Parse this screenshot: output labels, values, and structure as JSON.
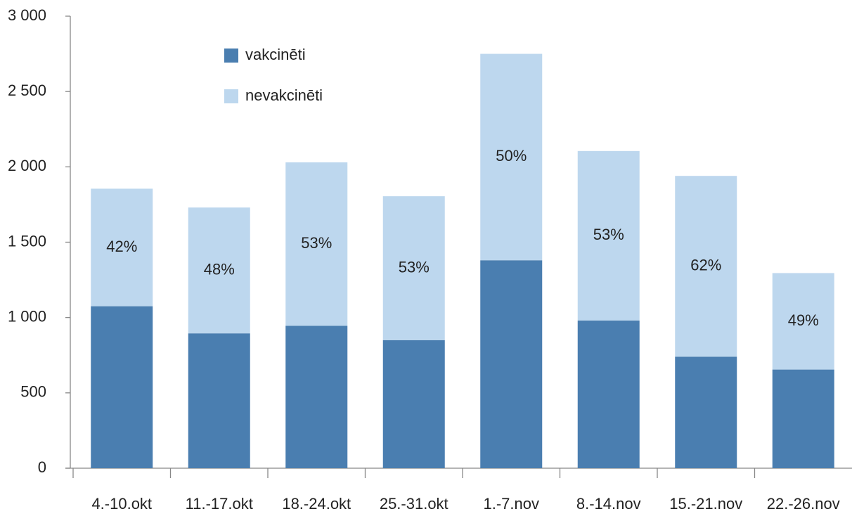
{
  "chart_data": {
    "type": "stacked_bar",
    "categories": [
      "4.-10.okt",
      "11.-17.okt",
      "18.-24.okt",
      "25.-31.okt",
      "1.-7.nov",
      "8.-14.nov",
      "15.-21.nov",
      "22.-26.nov"
    ],
    "series": [
      {
        "name": "vakcinēti",
        "color": "#4a7eb0",
        "values": [
          1075,
          895,
          945,
          850,
          1380,
          980,
          740,
          655
        ]
      },
      {
        "name": "nevakcinēti",
        "color": "#bdd7ee",
        "values": [
          780,
          835,
          1085,
          955,
          1370,
          1125,
          1200,
          640
        ]
      }
    ],
    "unvaccinated_share": {
      "values": [
        42,
        48,
        53,
        53,
        50,
        53,
        62,
        49
      ],
      "value_labels": [
        "42%",
        "48%",
        "53%",
        "53%",
        "50%",
        "53%",
        "62%",
        "49%"
      ]
    },
    "ylim": [
      0,
      3000
    ],
    "yticks": [
      0,
      500,
      {
        "value": 1000,
        "label": "1 000"
      },
      {
        "value": 1500,
        "label": "1 500"
      },
      {
        "value": 2000,
        "label": "2 000"
      },
      {
        "value": 2500,
        "label": "2 500"
      },
      {
        "value": 3000,
        "label": "3 000"
      }
    ],
    "legend": "top-left",
    "grid": false
  }
}
